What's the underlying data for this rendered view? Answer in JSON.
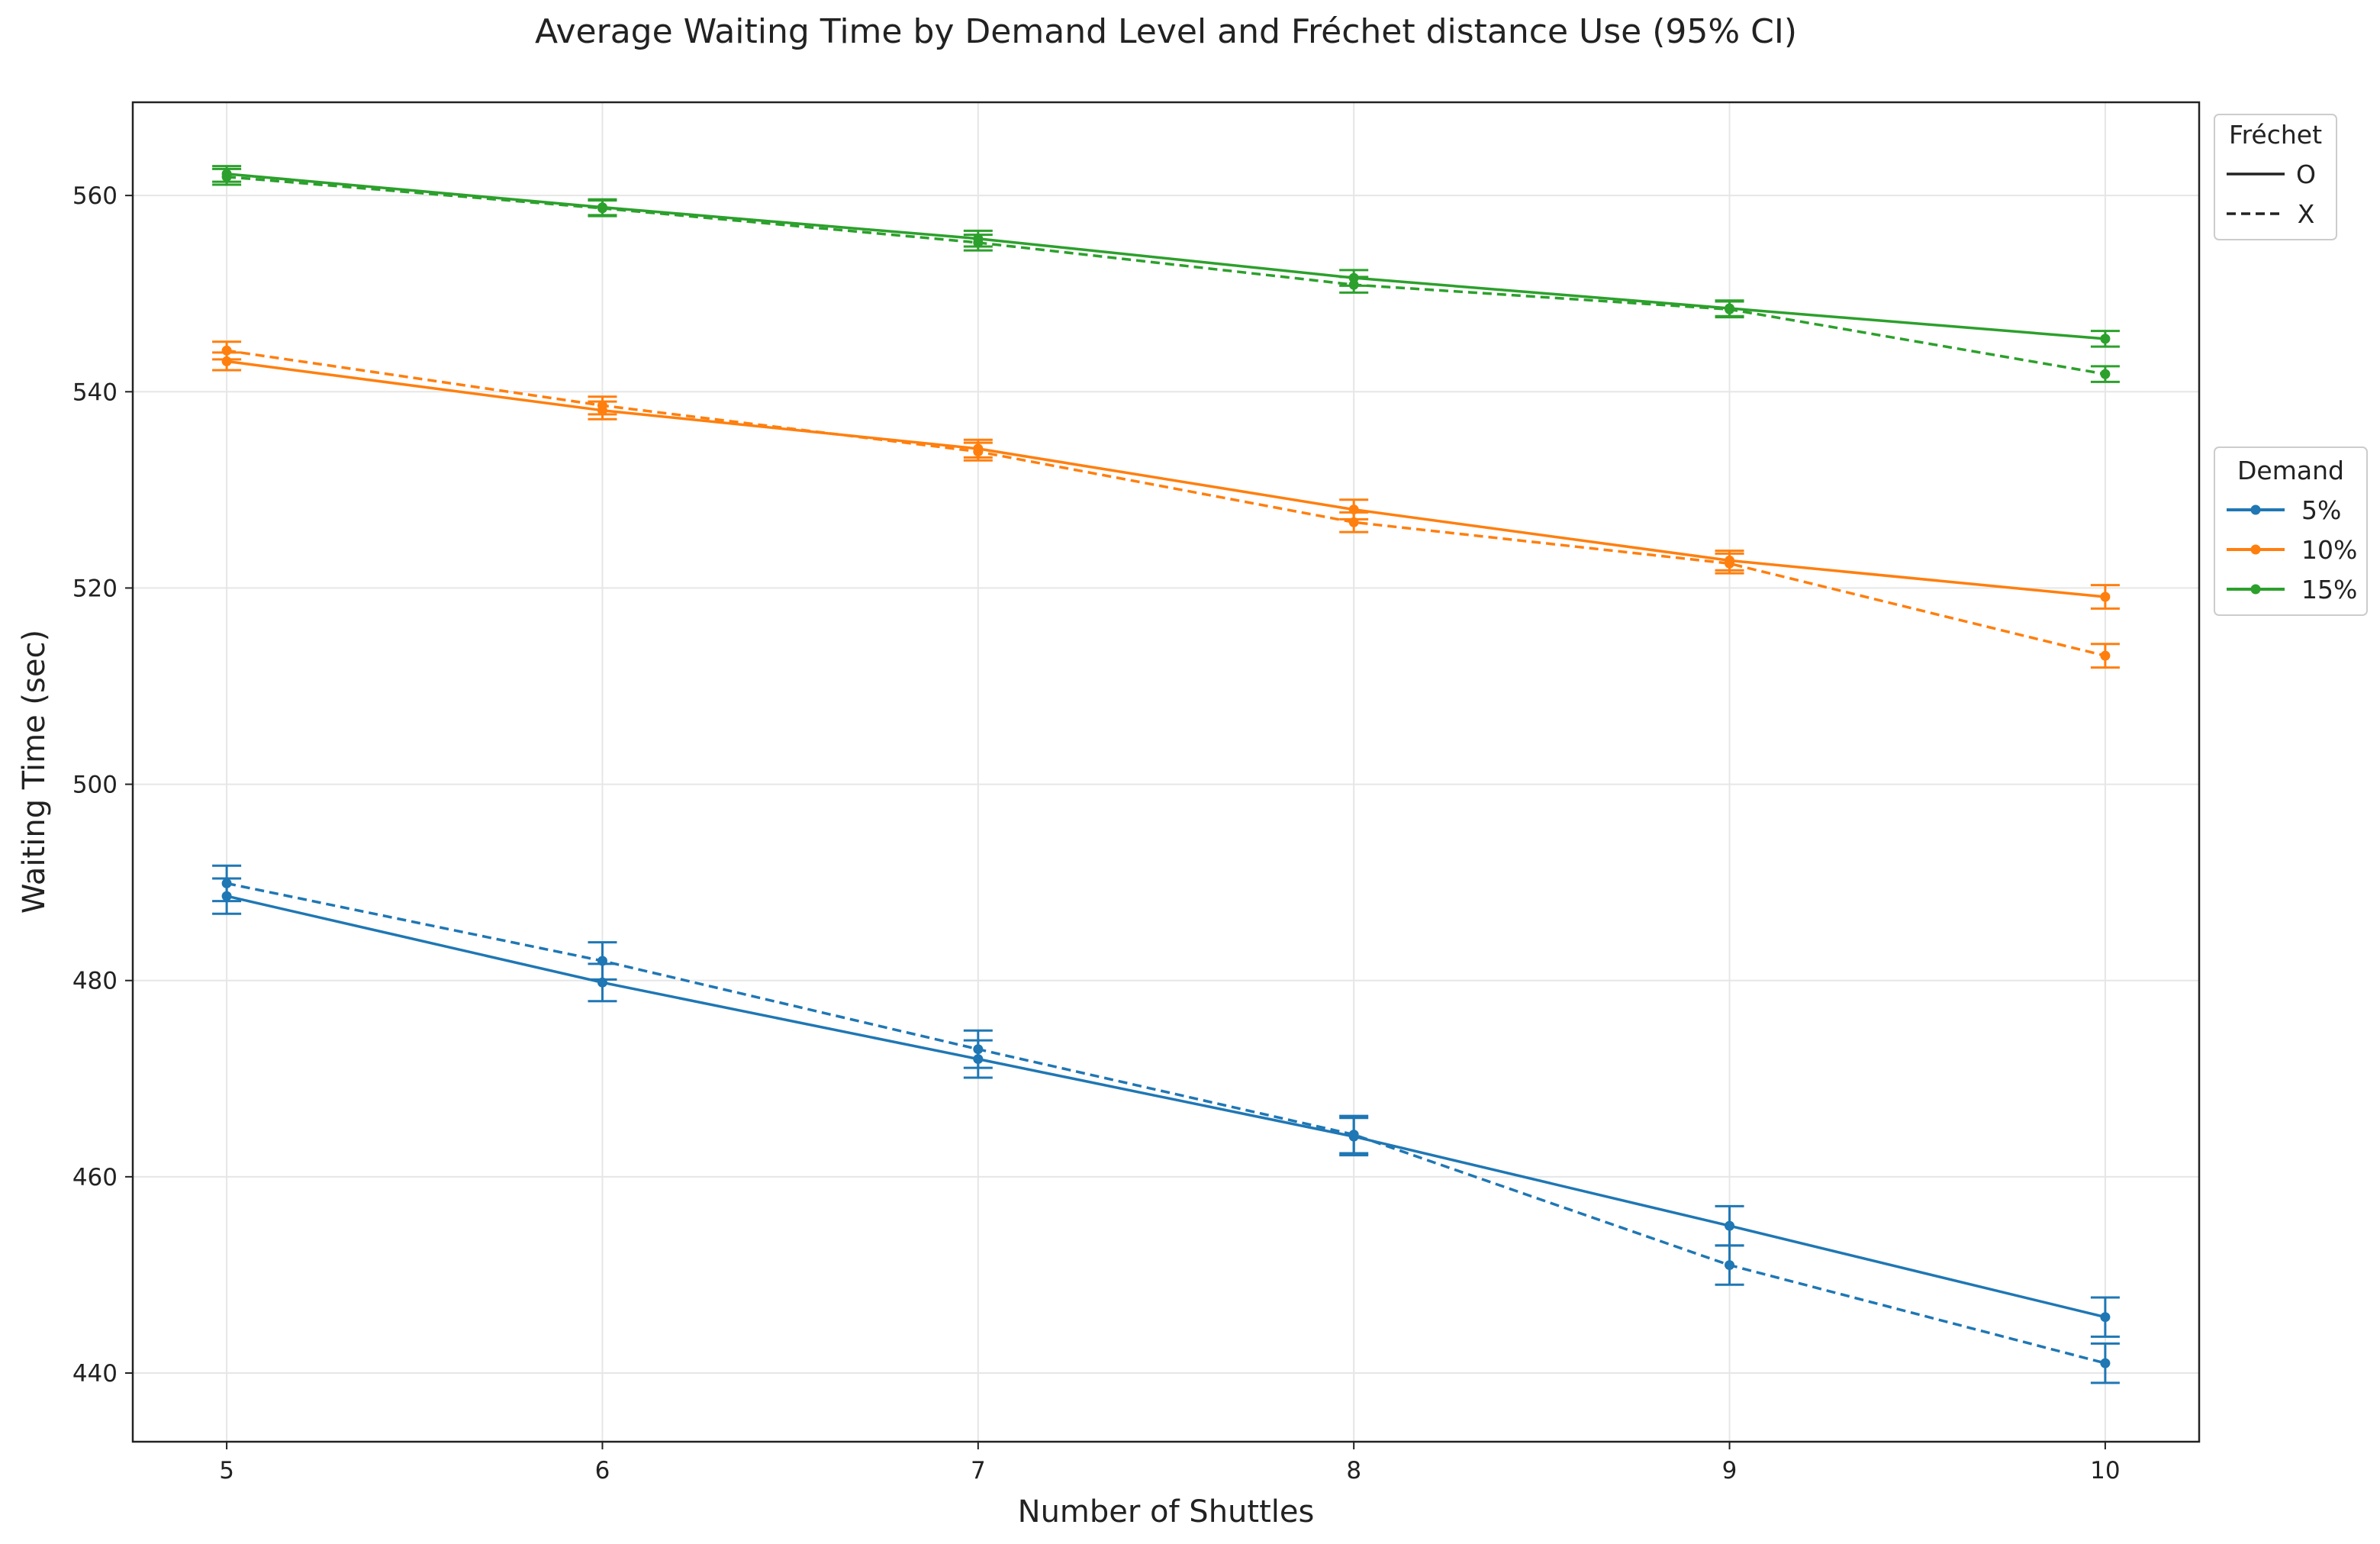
{
  "chart_data": {
    "type": "line",
    "title": "Average Waiting Time by Demand Level and Fréchet distance Use (95% CI)",
    "xlabel": "Number of Shuttles",
    "ylabel": "Waiting Time (sec)",
    "x": [
      5,
      6,
      7,
      8,
      9,
      10
    ],
    "xticks": [
      "5",
      "6",
      "7",
      "8",
      "9",
      "10"
    ],
    "yticks": [
      "440",
      "460",
      "480",
      "500",
      "520",
      "540",
      "560"
    ],
    "xlim": [
      4.75,
      10.25
    ],
    "ylim": [
      433,
      569.5
    ],
    "grid": true,
    "legends": {
      "frechet": {
        "title": "Fréchet",
        "placement": "upper-right-outside",
        "entries": [
          {
            "label": "O",
            "linestyle": "solid"
          },
          {
            "label": "X",
            "linestyle": "dashed"
          }
        ]
      },
      "demand": {
        "title": "Demand",
        "placement": "right-outside",
        "entries": [
          {
            "label": "5%",
            "color": "#1f77b4"
          },
          {
            "label": "10%",
            "color": "#ff7f0e"
          },
          {
            "label": "15%",
            "color": "#2ca02c"
          }
        ]
      }
    },
    "series": [
      {
        "demand": "5%",
        "frechet": "O",
        "color": "#1f77b4",
        "linestyle": "solid",
        "values": [
          488.6,
          479.8,
          472.0,
          464.1,
          455.0,
          445.7
        ],
        "ci": [
          1.8,
          1.9,
          1.9,
          1.9,
          2.0,
          2.0
        ]
      },
      {
        "demand": "5%",
        "frechet": "X",
        "color": "#1f77b4",
        "linestyle": "dashed",
        "values": [
          489.9,
          482.0,
          473.0,
          464.3,
          451.0,
          441.0
        ],
        "ci": [
          1.8,
          1.9,
          1.9,
          1.9,
          2.0,
          2.0
        ]
      },
      {
        "demand": "10%",
        "frechet": "O",
        "color": "#ff7f0e",
        "linestyle": "solid",
        "values": [
          543.1,
          538.1,
          534.2,
          528.0,
          522.8,
          519.1
        ],
        "ci": [
          0.9,
          0.9,
          0.9,
          1.0,
          1.0,
          1.2
        ]
      },
      {
        "demand": "10%",
        "frechet": "X",
        "color": "#ff7f0e",
        "linestyle": "dashed",
        "values": [
          544.2,
          538.6,
          533.9,
          526.7,
          522.5,
          513.1
        ],
        "ci": [
          0.9,
          0.9,
          0.9,
          1.0,
          1.0,
          1.2
        ]
      },
      {
        "demand": "15%",
        "frechet": "O",
        "color": "#2ca02c",
        "linestyle": "solid",
        "values": [
          562.2,
          558.8,
          555.6,
          551.6,
          548.5,
          545.4
        ],
        "ci": [
          0.8,
          0.8,
          0.8,
          0.8,
          0.8,
          0.8
        ]
      },
      {
        "demand": "15%",
        "frechet": "X",
        "color": "#2ca02c",
        "linestyle": "dashed",
        "values": [
          561.9,
          558.7,
          555.2,
          550.9,
          548.4,
          541.8
        ],
        "ci": [
          0.8,
          0.8,
          0.8,
          0.8,
          0.8,
          0.8
        ]
      }
    ]
  }
}
